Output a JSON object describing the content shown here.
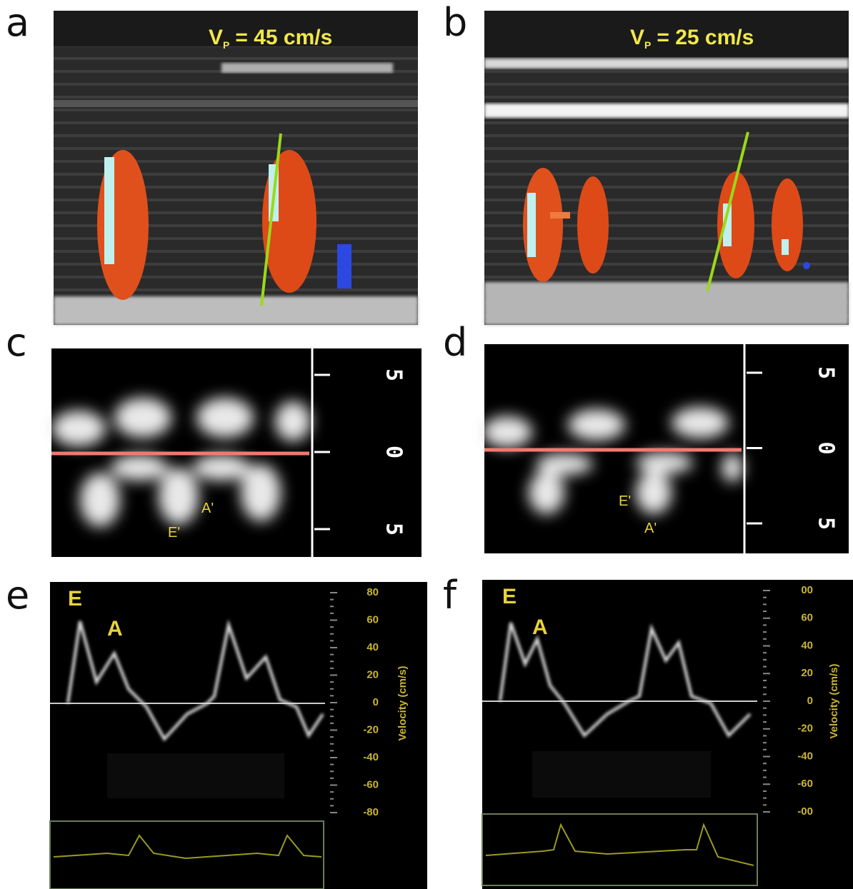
{
  "panels": [
    {
      "letter": "a",
      "velocity": {
        "symbol": "V",
        "subscript": "P",
        "text": "= 45 cm/s"
      }
    },
    {
      "letter": "b",
      "velocity": {
        "symbol": "V",
        "subscript": "P",
        "text": "= 25 cm/s"
      }
    },
    {
      "letter": "c",
      "scale": [
        "5",
        "0",
        "5"
      ],
      "labels": [
        "A'",
        "E'"
      ]
    },
    {
      "letter": "d",
      "scale": [
        "5",
        "0",
        "5"
      ],
      "labels": [
        "E'",
        "A'"
      ]
    },
    {
      "letter": "e",
      "labels": [
        "E",
        "A"
      ],
      "axis_ticks": [
        "80",
        "60",
        "40",
        "20",
        "0",
        "-20",
        "-40",
        "-60",
        "-80"
      ],
      "axis_title": "Velocity (cm/s)"
    },
    {
      "letter": "f",
      "labels": [
        "E",
        "A"
      ],
      "axis_ticks": [
        "00",
        "60",
        "40",
        "20",
        "0",
        "-20",
        "-40",
        "-60",
        "-00"
      ],
      "axis_title": "Velocity (cm/s)"
    }
  ]
}
